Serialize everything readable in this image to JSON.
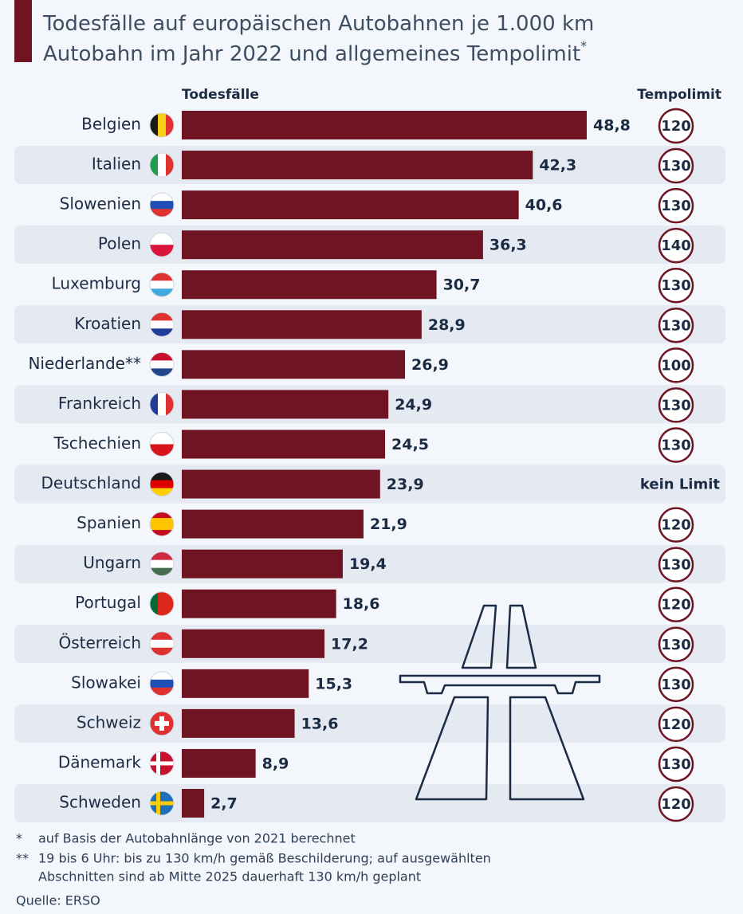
{
  "chart_data": {
    "type": "bar",
    "title": [
      "Todesfälle auf europäischen Autobahnen je 1.000 km",
      "Autobahn im Jahr 2022 und allgemeines Tempolimit"
    ],
    "title_note": "*",
    "value_header": "Todesfälle",
    "limit_header": "Tempolimit",
    "categories": [
      "Belgien",
      "Italien",
      "Slowenien",
      "Polen",
      "Luxemburg",
      "Kroatien",
      "Niederlande**",
      "Frankreich",
      "Tschechien",
      "Deutschland",
      "Spanien",
      "Ungarn",
      "Portugal",
      "Österreich",
      "Slowakei",
      "Schweiz",
      "Dänemark",
      "Schweden"
    ],
    "values": [
      48.8,
      42.3,
      40.6,
      36.3,
      30.7,
      28.9,
      26.9,
      24.9,
      24.5,
      23.9,
      21.9,
      19.4,
      18.6,
      17.2,
      15.3,
      13.6,
      8.9,
      2.7
    ],
    "value_labels": [
      "48,8",
      "42,3",
      "40,6",
      "36,3",
      "30,7",
      "28,9",
      "26,9",
      "24,9",
      "24,5",
      "23,9",
      "21,9",
      "19,4",
      "18,6",
      "17,2",
      "15,3",
      "13,6",
      "8,9",
      "2,7"
    ],
    "limits": [
      120,
      130,
      130,
      140,
      130,
      130,
      100,
      130,
      130,
      "kein Limit",
      120,
      130,
      120,
      130,
      130,
      120,
      130,
      120
    ],
    "color": "#6e1423",
    "footnotes": [
      [
        "*",
        "auf Basis der Autobahnlänge von 2021 berechnet"
      ],
      [
        "**",
        "19 bis 6 Uhr: bis zu 130 km/h gemäß Beschilderung; auf ausgewählten",
        "Abschnitten sind ab Mitte 2025 dauerhaft 130 km/h geplant"
      ]
    ],
    "source": "Quelle: ERSO"
  }
}
